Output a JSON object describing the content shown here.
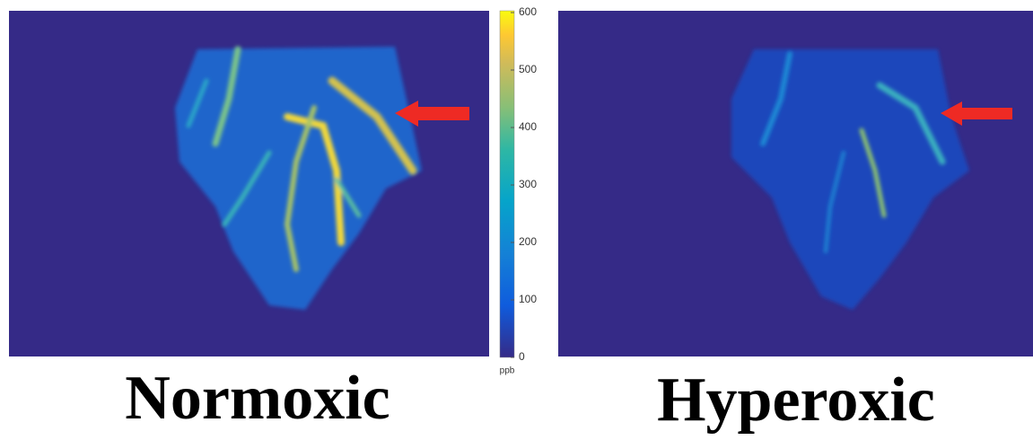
{
  "panels": [
    {
      "label": "Normoxic"
    },
    {
      "label": "Hyperoxic"
    }
  ],
  "colorbar": {
    "lim": [
      0,
      600
    ],
    "ticks": [
      0,
      100,
      200,
      300,
      400,
      500,
      600
    ],
    "unit": "ppb"
  }
}
